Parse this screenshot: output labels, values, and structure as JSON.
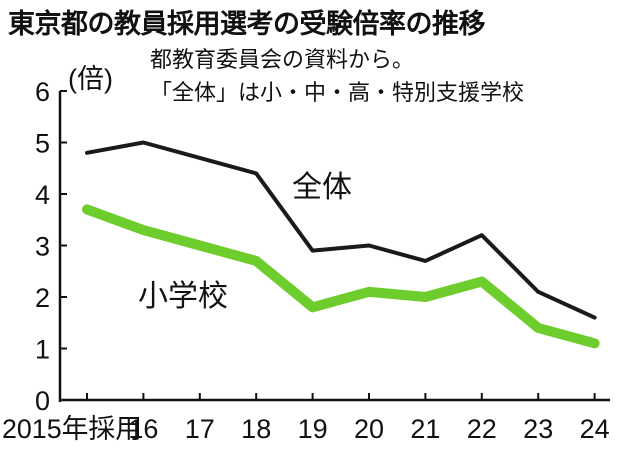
{
  "title": "東京都の教員採用選考の受験倍率の推移",
  "chart_data": {
    "type": "line",
    "title": "東京都の教員採用選考の受験倍率の推移",
    "ylabel": "(倍)",
    "note_lines": [
      "都教育委員会の資料から。",
      "「全体」は小・中・高・特別支援学校"
    ],
    "categories": [
      "2015年採用",
      "16",
      "17",
      "18",
      "19",
      "20",
      "21",
      "22",
      "23",
      "24"
    ],
    "ylim": [
      0,
      6
    ],
    "yticks": [
      "0",
      "1",
      "2",
      "3",
      "4",
      "5",
      "6"
    ],
    "grid": false,
    "series": [
      {
        "name": "全体",
        "values": [
          4.8,
          5.0,
          4.7,
          4.4,
          2.9,
          3.0,
          2.7,
          3.2,
          2.1,
          1.6
        ],
        "color": "#1a1a1a"
      },
      {
        "name": "小学校",
        "values": [
          3.7,
          3.3,
          3.0,
          2.7,
          1.8,
          2.1,
          2.0,
          2.3,
          1.4,
          1.1
        ],
        "color": "#6ccd2c"
      }
    ]
  }
}
